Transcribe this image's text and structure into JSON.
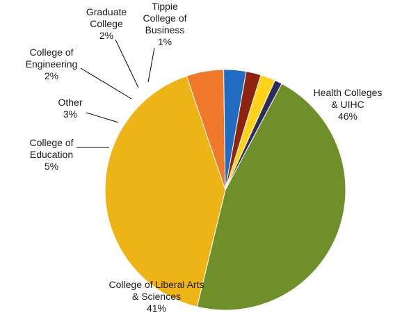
{
  "chart_data": {
    "type": "pie",
    "slices": [
      {
        "name": "Health Colleges & UIHC",
        "label_lines": [
          "Health Colleges",
          "& UIHC"
        ],
        "value": 46,
        "value_label": "46%",
        "color": "#6f8f2a"
      },
      {
        "name": "College of Liberal Arts & Sciences",
        "label_lines": [
          "College of Liberal Arts",
          "& Sciences"
        ],
        "value": 41,
        "value_label": "41%",
        "color": "#eeb416"
      },
      {
        "name": "College of Education",
        "label_lines": [
          "College of",
          "Education"
        ],
        "value": 5,
        "value_label": "5%",
        "color": "#f0782a"
      },
      {
        "name": "Other",
        "label_lines": [
          "Other"
        ],
        "value": 3,
        "value_label": "3%",
        "color": "#1f6bbf"
      },
      {
        "name": "College of Engineering",
        "label_lines": [
          "College of",
          "Engineering"
        ],
        "value": 2,
        "value_label": "2%",
        "color": "#8e2410"
      },
      {
        "name": "Graduate College",
        "label_lines": [
          "Graduate",
          "College"
        ],
        "value": 2,
        "value_label": "2%",
        "color": "#ffd21a"
      },
      {
        "name": "Tippie College of Business",
        "label_lines": [
          "Tippie",
          "College of",
          "Business"
        ],
        "value": 1,
        "value_label": "1%",
        "color": "#2f2a5c"
      }
    ],
    "legend": "none",
    "title": ""
  }
}
